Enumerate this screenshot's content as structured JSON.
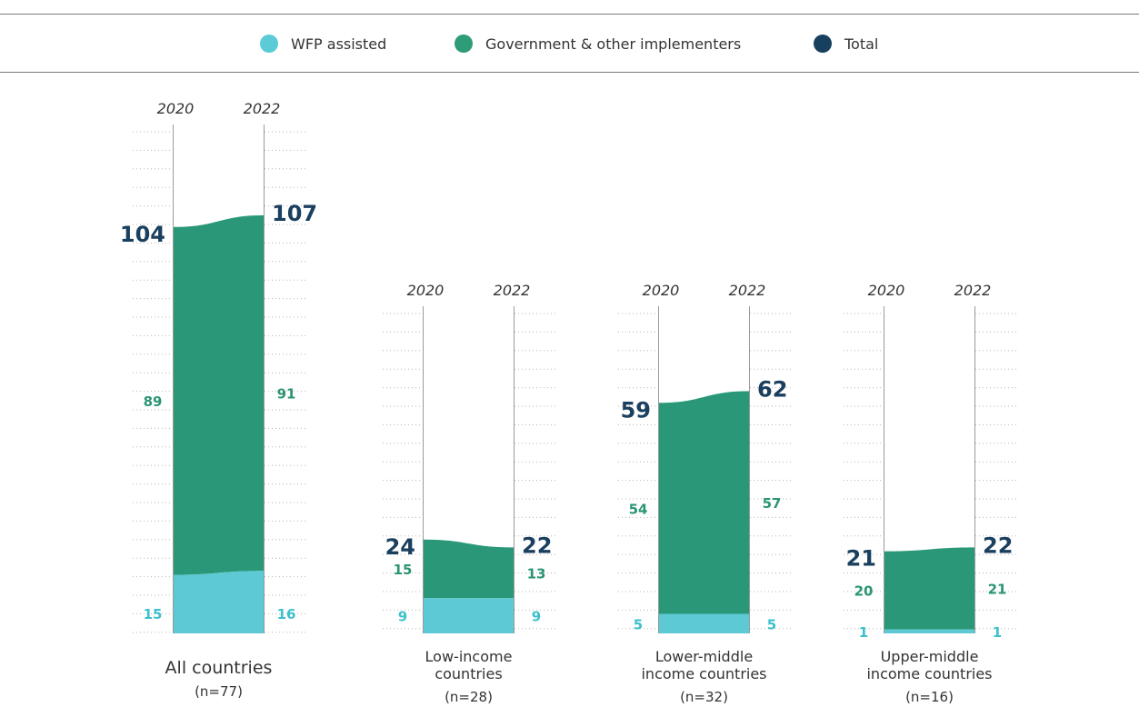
{
  "legend": {
    "items": [
      {
        "key": "wfp",
        "label": "WFP assisted",
        "color": "#5bcbd6",
        "icon": "circle-icon"
      },
      {
        "key": "gov",
        "label": "Government & other implementers",
        "color": "#2e9b79",
        "icon": "circle-icon"
      },
      {
        "key": "total",
        "label": "Total",
        "color": "#17405f",
        "icon": "circle-icon"
      }
    ]
  },
  "chart_data": {
    "type": "area",
    "x": [
      "2020",
      "2022"
    ],
    "colors": {
      "wfp": "#5cc9d4",
      "gov": "#2a9878",
      "total_text": "#1a3f5f",
      "wfp_text": "#3cc0cc",
      "gov_text": "#2a9474"
    },
    "groups": [
      {
        "name": [
          "All countries"
        ],
        "n": "(n=77)",
        "total": [
          104,
          107
        ],
        "gov": [
          89,
          91
        ],
        "wfp": [
          15,
          16
        ]
      },
      {
        "name": [
          "Low-income",
          "countries"
        ],
        "n": "(n=28)",
        "total": [
          24,
          22
        ],
        "gov": [
          15,
          13
        ],
        "wfp": [
          9,
          9
        ]
      },
      {
        "name": [
          "Lower-middle",
          "income countries"
        ],
        "n": "(n=32)",
        "total": [
          59,
          62
        ],
        "gov": [
          54,
          57
        ],
        "wfp": [
          5,
          5
        ]
      },
      {
        "name": [
          "Upper-middle",
          "income countries"
        ],
        "n": "(n=16)",
        "total": [
          21,
          22
        ],
        "gov": [
          20,
          21
        ],
        "wfp": [
          1,
          1
        ]
      }
    ]
  }
}
